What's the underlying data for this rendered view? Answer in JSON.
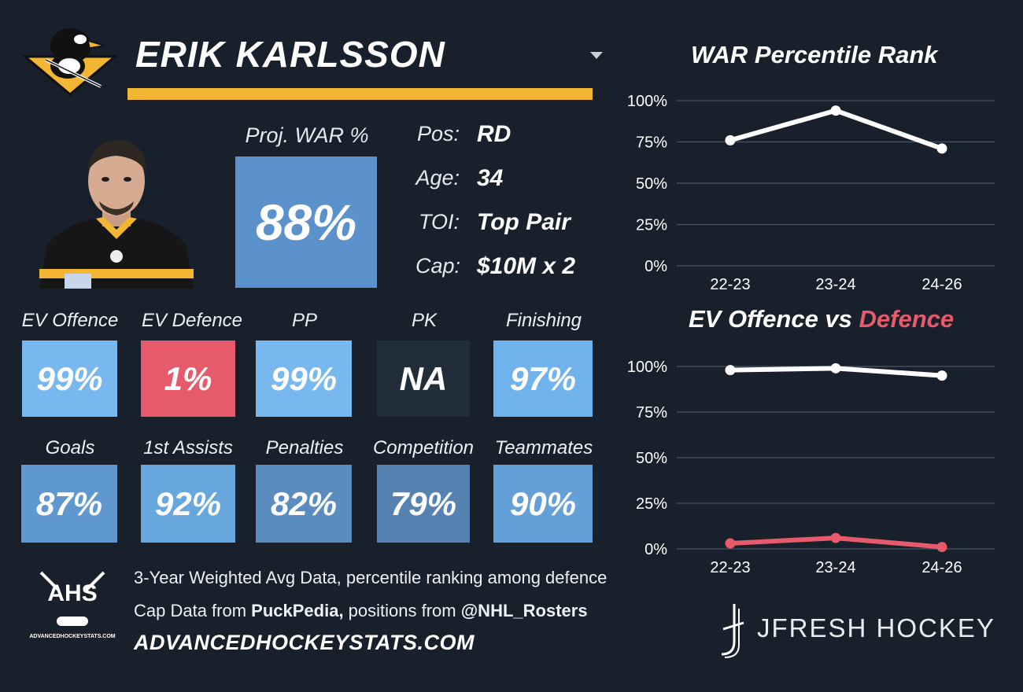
{
  "player": {
    "name": "ERIK KARLSSON",
    "team_logo": "penguins-logo-icon",
    "proj_war_label": "Proj. WAR %",
    "proj_war_value": "88%"
  },
  "info": [
    {
      "key": "Pos:",
      "value": "RD"
    },
    {
      "key": "Age:",
      "value": "34"
    },
    {
      "key": "TOI:",
      "value": "Top Pair"
    },
    {
      "key": "Cap:",
      "value": "$10M x 2"
    }
  ],
  "stats_row1": [
    {
      "label": "EV Offence",
      "value": "99%",
      "color": "#78b8ee"
    },
    {
      "label": "EV Defence",
      "value": "1%",
      "color": "#e65a6c"
    },
    {
      "label": "PP",
      "value": "99%",
      "color": "#78b8ee"
    },
    {
      "label": "PK",
      "value": "NA",
      "color": "#222d3a"
    },
    {
      "label": "Finishing",
      "value": "97%",
      "color": "#6fb2ec"
    }
  ],
  "stats_row2": [
    {
      "label": "Goals",
      "value": "87%",
      "color": "#5e98cf"
    },
    {
      "label": "1st Assists",
      "value": "92%",
      "color": "#68a6de"
    },
    {
      "label": "Penalties",
      "value": "82%",
      "color": "#5a8cbf"
    },
    {
      "label": "Competition",
      "value": "79%",
      "color": "#5682b1"
    },
    {
      "label": "Teammates",
      "value": "90%",
      "color": "#649fd8"
    }
  ],
  "footer": {
    "logo_text": "AHS",
    "logo_subtext": "ADVANCEDHOCKEYSTATS.COM",
    "line1": "3-Year Weighted Avg Data, percentile ranking among defence",
    "line2_prefix": "Cap Data from ",
    "line2_bold1": "PuckPedia,",
    "line2_mid": " positions from ",
    "line2_bold2": "@NHL_Rosters",
    "site": "ADVANCEDHOCKEYSTATS.COM",
    "brand": "JFRESH HOCKEY"
  },
  "chart_data": [
    {
      "type": "line",
      "title": "WAR Percentile Rank",
      "categories": [
        "22-23",
        "23-24",
        "24-26"
      ],
      "series": [
        {
          "values": [
            76,
            94,
            71
          ],
          "color": "#ffffff"
        }
      ],
      "yticks": [
        "0%",
        "25%",
        "50%",
        "75%",
        "100%"
      ],
      "ylim": [
        0,
        100
      ],
      "grid": true
    },
    {
      "type": "line",
      "title_part1": "EV Offence vs ",
      "title_part2": "Defence",
      "title_part2_color": "#e65a6c",
      "categories": [
        "22-23",
        "23-24",
        "24-26"
      ],
      "series": [
        {
          "values": [
            98,
            99,
            95
          ],
          "color": "#ffffff"
        },
        {
          "values": [
            3,
            6,
            1
          ],
          "color": "#e65a6c"
        }
      ],
      "yticks": [
        "0%",
        "25%",
        "50%",
        "75%",
        "100%"
      ],
      "ylim": [
        0,
        100
      ],
      "grid": true
    }
  ]
}
